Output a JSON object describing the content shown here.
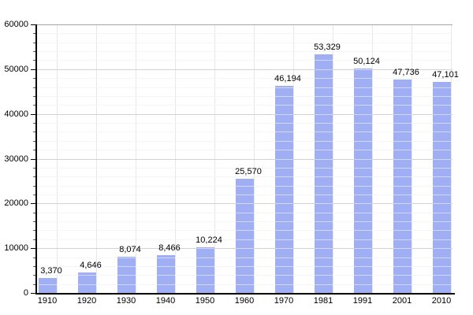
{
  "chart_data": {
    "type": "bar",
    "title": "",
    "categories": [
      "1910",
      "1920",
      "1930",
      "1940",
      "1950",
      "1960",
      "1970",
      "1981",
      "1991",
      "2001",
      "2010"
    ],
    "values": [
      3370,
      4646,
      8074,
      8466,
      10224,
      25570,
      46194,
      53329,
      50124,
      47736,
      47101
    ],
    "value_labels": [
      "3,370",
      "4,646",
      "8,074",
      "8,466",
      "10,224",
      "25,570",
      "46,194",
      "53,329",
      "50,124",
      "47,736",
      "47,101"
    ],
    "xlabel": "",
    "ylabel": "",
    "ylim": [
      0,
      60000
    ],
    "ytick_major_interval": 10000,
    "ytick_minor_interval": 2000,
    "ytick_labels": [
      "0",
      "10000",
      "20000",
      "30000",
      "40000",
      "50000",
      "60000"
    ],
    "legend": "none",
    "grid": "horizontal major and minor lines, faint vertical line beside each bar",
    "colors": {
      "bar": "#a0aff3",
      "grid_major": "#a6a6a6",
      "grid_minor": "#eaeaea",
      "grid_vertical": "#e7e7e7",
      "grid_over_bar": "rgba(255,255,255,0.5)",
      "axis": "#000000",
      "text": "#000000",
      "background": "#ffffff"
    }
  }
}
